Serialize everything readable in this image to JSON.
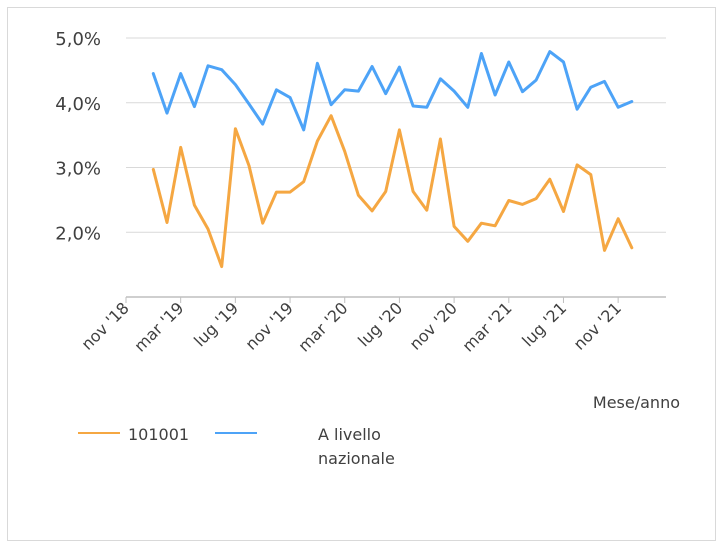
{
  "chart_data": {
    "type": "line",
    "title": "",
    "xlabel": "Mese/anno",
    "ylabel": "",
    "ylim": [
      1.0,
      5.0
    ],
    "y_ticks": [
      "2,0%",
      "3,0%",
      "4,0%",
      "5,0%"
    ],
    "y_tick_values": [
      2.0,
      3.0,
      4.0,
      5.0
    ],
    "grid": true,
    "legend_position": "bottom-left",
    "x_tick_labels": [
      "nov '18",
      "mar '19",
      "lug '19",
      "nov '19",
      "mar '20",
      "lug '20",
      "nov '20",
      "mar '21",
      "lug '21",
      "nov '21"
    ],
    "x_tick_months": [
      0,
      4,
      8,
      12,
      16,
      20,
      24,
      28,
      32,
      36
    ],
    "x_month_range": [
      0,
      39.5
    ],
    "series": [
      {
        "name": "101001",
        "color": "#f5a742",
        "x_months": [
          2,
          3,
          4,
          5,
          6,
          7,
          8,
          9,
          10,
          11,
          12,
          13,
          14,
          15,
          16,
          17,
          18,
          19,
          20,
          21,
          22,
          23,
          24,
          25,
          26,
          27,
          28,
          29,
          30,
          31,
          32,
          33,
          34,
          35,
          36,
          37,
          38
        ],
        "values": [
          2.97,
          2.15,
          3.31,
          2.42,
          2.05,
          1.47,
          3.6,
          3.03,
          2.14,
          2.62,
          2.62,
          2.78,
          3.41,
          3.8,
          3.25,
          2.57,
          2.33,
          2.63,
          3.58,
          2.63,
          2.34,
          3.44,
          2.09,
          1.86,
          2.14,
          2.1,
          2.49,
          2.43,
          2.52,
          2.82,
          2.32,
          3.04,
          2.89,
          1.72,
          2.21,
          1.76,
          null
        ]
      },
      {
        "name": "A livello nazionale",
        "color": "#4da3f7",
        "x_months": [
          2,
          3,
          4,
          5,
          6,
          7,
          8,
          9,
          10,
          11,
          12,
          13,
          14,
          15,
          16,
          17,
          18,
          19,
          20,
          21,
          22,
          23,
          24,
          25,
          26,
          27,
          28,
          29,
          30,
          31,
          32,
          33,
          34,
          35,
          36,
          37,
          38
        ],
        "values": [
          4.45,
          3.84,
          4.45,
          3.94,
          4.57,
          4.51,
          4.28,
          3.98,
          3.67,
          4.2,
          4.08,
          3.58,
          4.61,
          3.97,
          4.2,
          4.18,
          4.56,
          4.14,
          4.55,
          3.95,
          3.93,
          4.37,
          4.18,
          3.93,
          4.76,
          4.12,
          4.63,
          4.17,
          4.35,
          4.79,
          4.63,
          3.9,
          4.24,
          4.33,
          3.93,
          4.02,
          null
        ]
      }
    ]
  }
}
